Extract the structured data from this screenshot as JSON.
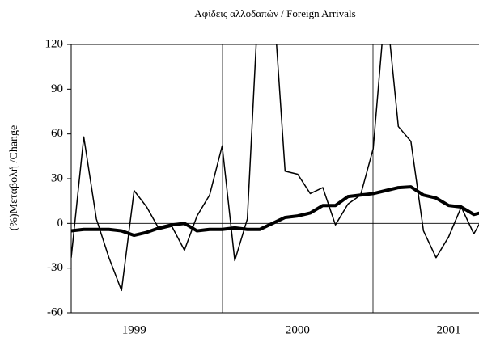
{
  "chart_data": {
    "type": "line",
    "title": "Αφίδεις αλλοδαπών  / Foreign Arrivals",
    "y_label": "(%)Μεταβολή /Change",
    "categories": [
      null,
      null,
      null,
      null,
      null,
      "1999",
      null,
      null,
      null,
      null,
      null,
      null,
      null,
      null,
      null,
      null,
      null,
      null,
      "2000",
      null,
      null,
      null,
      null,
      null,
      null,
      null,
      null,
      null,
      null,
      null,
      "2001",
      null,
      null,
      null
    ],
    "series": [
      {
        "color": "#000000",
        "values": [
          -23,
          58,
          3,
          -23,
          -45,
          22,
          11,
          -4,
          -2,
          -18,
          5,
          19,
          52,
          -25,
          3,
          170,
          160,
          35,
          33,
          20,
          24,
          -1,
          13,
          19,
          50,
          150,
          65,
          55,
          -5,
          -23,
          -9,
          11,
          -7,
          8
        ]
      },
      {
        "color": "#000000",
        "values": [
          -5,
          -4,
          -4,
          -4,
          -5,
          -8,
          -6,
          -3,
          -1,
          0,
          -5,
          -4,
          -4,
          -3,
          -4,
          -4,
          0,
          4,
          5,
          7,
          12,
          12,
          18,
          19,
          20,
          22,
          24,
          24.5,
          19,
          17,
          12,
          11,
          6,
          8
        ]
      }
    ],
    "ylim": [
      -60,
      120
    ],
    "yticks": [
      -60,
      -30,
      0,
      30,
      60,
      90,
      120
    ]
  }
}
